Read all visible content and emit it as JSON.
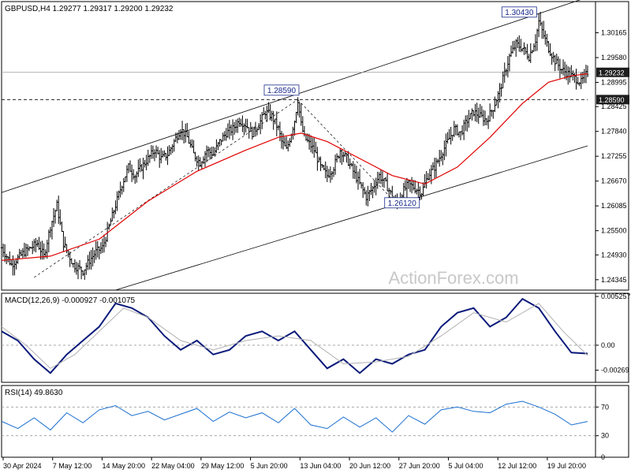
{
  "chart_data": [
    {
      "type": "candlestick",
      "title": "GBPUSD,H4  1.29277 1.29317 1.29200 1.29232",
      "ylim": [
        1.241,
        1.309
      ],
      "y_ticks": [
        "1.30165",
        "1.29580",
        "1.28995",
        "1.28425",
        "1.27840",
        "1.27255",
        "1.26670",
        "1.26085",
        "1.25500",
        "1.24930",
        "1.24345"
      ],
      "y_tick_values": [
        1.30165,
        1.2958,
        1.28995,
        1.28425,
        1.2784,
        1.27255,
        1.2667,
        1.26085,
        1.255,
        1.2493,
        1.24345
      ],
      "x_ticks": [
        "30 Apr 2024",
        "7 May 12:00",
        "14 May 20:00",
        "22 May 04:00",
        "29 May 12:00",
        "5 Jun 20:00",
        "13 Jun 04:00",
        "20 Jun 12:00",
        "27 Jun 20:00",
        "5 Jul 04:00",
        "12 Jul 12:00",
        "19 Jul 20:00"
      ],
      "price_path": [
        [
          0,
          1.251
        ],
        [
          6,
          1.247
        ],
        [
          14,
          1.25
        ],
        [
          22,
          1.252
        ],
        [
          26,
          1.249
        ],
        [
          30,
          1.256
        ],
        [
          34,
          1.261
        ],
        [
          38,
          1.252
        ],
        [
          44,
          1.247
        ],
        [
          50,
          1.2455
        ],
        [
          54,
          1.248
        ],
        [
          58,
          1.25
        ],
        [
          62,
          1.251
        ],
        [
          66,
          1.256
        ],
        [
          70,
          1.261
        ],
        [
          74,
          1.266
        ],
        [
          78,
          1.27
        ],
        [
          82,
          1.268
        ],
        [
          86,
          1.27
        ],
        [
          90,
          1.272
        ],
        [
          94,
          1.274
        ],
        [
          98,
          1.272
        ],
        [
          102,
          1.273
        ],
        [
          106,
          1.276
        ],
        [
          110,
          1.279
        ],
        [
          114,
          1.277
        ],
        [
          118,
          1.273
        ],
        [
          122,
          1.271
        ],
        [
          126,
          1.274
        ],
        [
          130,
          1.273
        ],
        [
          134,
          1.276
        ],
        [
          138,
          1.278
        ],
        [
          142,
          1.279
        ],
        [
          146,
          1.281
        ],
        [
          150,
          1.28
        ],
        [
          154,
          1.278
        ],
        [
          158,
          1.28
        ],
        [
          162,
          1.283
        ],
        [
          166,
          1.282
        ],
        [
          170,
          1.279
        ],
        [
          172,
          1.276
        ],
        [
          175,
          1.274
        ],
        [
          178,
          1.278
        ],
        [
          180,
          1.281
        ],
        [
          182,
          1.2859
        ],
        [
          184,
          1.28
        ],
        [
          186,
          1.277
        ],
        [
          188,
          1.276
        ],
        [
          192,
          1.274
        ],
        [
          196,
          1.27
        ],
        [
          200,
          1.268
        ],
        [
          204,
          1.27
        ],
        [
          208,
          1.274
        ],
        [
          212,
          1.272
        ],
        [
          216,
          1.269
        ],
        [
          220,
          1.266
        ],
        [
          224,
          1.263
        ],
        [
          228,
          1.265
        ],
        [
          232,
          1.268
        ],
        [
          236,
          1.266
        ],
        [
          240,
          1.263
        ],
        [
          243,
          1.2612
        ],
        [
          246,
          1.264
        ],
        [
          250,
          1.266
        ],
        [
          254,
          1.265
        ],
        [
          258,
          1.264
        ],
        [
          262,
          1.268
        ],
        [
          266,
          1.27
        ],
        [
          270,
          1.273
        ],
        [
          274,
          1.276
        ],
        [
          278,
          1.279
        ],
        [
          282,
          1.278
        ],
        [
          286,
          1.281
        ],
        [
          290,
          1.283
        ],
        [
          294,
          1.282
        ],
        [
          298,
          1.281
        ],
        [
          302,
          1.284
        ],
        [
          306,
          1.288
        ],
        [
          309,
          1.292
        ],
        [
          312,
          1.296
        ],
        [
          316,
          1.299
        ],
        [
          320,
          1.298
        ],
        [
          324,
          1.296
        ],
        [
          328,
          1.3
        ],
        [
          330,
          1.3043
        ],
        [
          333,
          1.301
        ],
        [
          336,
          1.298
        ],
        [
          340,
          1.295
        ],
        [
          344,
          1.293
        ],
        [
          348,
          1.292
        ],
        [
          352,
          1.291
        ],
        [
          356,
          1.29
        ],
        [
          360,
          1.2923
        ]
      ],
      "series": [
        {
          "name": "",
          "color": "#e00000",
          "values": [
            [
              0,
              1.248
            ],
            [
              30,
              1.249
            ],
            [
              60,
              1.253
            ],
            [
              90,
              1.262
            ],
            [
              120,
              1.269
            ],
            [
              150,
              1.274
            ],
            [
              170,
              1.277
            ],
            [
              184,
              1.278
            ],
            [
              200,
              1.276
            ],
            [
              220,
              1.272
            ],
            [
              240,
              1.268
            ],
            [
              260,
              1.266
            ],
            [
              280,
              1.27
            ],
            [
              300,
              1.277
            ],
            [
              320,
              1.285
            ],
            [
              336,
              1.29
            ],
            [
              350,
              1.2915
            ],
            [
              360,
              1.292
            ]
          ]
        }
      ],
      "annotations": [
        {
          "label": "1.30430",
          "value": 1.3043
        },
        {
          "label": "1.28590",
          "value": 1.2859
        },
        {
          "label": "1.26120",
          "value": 1.2612
        }
      ],
      "last_price_label": "1.29232",
      "last_price": 1.29232,
      "level_label": "1.28590",
      "level": 1.2859,
      "grid": false,
      "watermark": "ActionForex.com"
    },
    {
      "type": "line",
      "title": "MACD(12,26,9) -0.000927 -0.001075",
      "ylim": [
        -0.004,
        0.0056
      ],
      "y_ticks": [
        "0.005257",
        "0.00",
        "-0.00269"
      ],
      "y_tick_values": [
        0.005257,
        0.0,
        -0.00269
      ],
      "series": [
        {
          "name": "",
          "color": "#0a1a7a",
          "values": [
            [
              0,
              0.0015
            ],
            [
              10,
              0.0005
            ],
            [
              20,
              -0.0015
            ],
            [
              30,
              -0.003
            ],
            [
              40,
              -0.001
            ],
            [
              50,
              0.0005
            ],
            [
              60,
              0.002
            ],
            [
              70,
              0.0045
            ],
            [
              80,
              0.004
            ],
            [
              90,
              0.003
            ],
            [
              100,
              0.001
            ],
            [
              110,
              -0.0005
            ],
            [
              120,
              0.0005
            ],
            [
              130,
              -0.001
            ],
            [
              140,
              -0.0005
            ],
            [
              150,
              0.001
            ],
            [
              160,
              0.0015
            ],
            [
              170,
              0.0005
            ],
            [
              180,
              0.0015
            ],
            [
              190,
              -0.0005
            ],
            [
              200,
              -0.0025
            ],
            [
              210,
              -0.0015
            ],
            [
              220,
              -0.003
            ],
            [
              230,
              -0.0015
            ],
            [
              240,
              -0.002
            ],
            [
              250,
              -0.001
            ],
            [
              260,
              -0.0005
            ],
            [
              270,
              0.002
            ],
            [
              280,
              0.0035
            ],
            [
              290,
              0.004
            ],
            [
              300,
              0.002
            ],
            [
              310,
              0.003
            ],
            [
              320,
              0.005
            ],
            [
              330,
              0.004
            ],
            [
              340,
              0.0015
            ],
            [
              350,
              -0.0008
            ],
            [
              360,
              -0.0009
            ]
          ]
        },
        {
          "name": "",
          "color": "#b0b0b0",
          "values": [
            [
              0,
              0.002
            ],
            [
              15,
              0.0
            ],
            [
              30,
              -0.0025
            ],
            [
              45,
              -0.001
            ],
            [
              60,
              0.0015
            ],
            [
              75,
              0.004
            ],
            [
              90,
              0.003
            ],
            [
              110,
              0.0005
            ],
            [
              130,
              -0.0005
            ],
            [
              150,
              0.0005
            ],
            [
              170,
              0.001
            ],
            [
              190,
              0.0005
            ],
            [
              210,
              -0.002
            ],
            [
              230,
              -0.0018
            ],
            [
              250,
              -0.0012
            ],
            [
              270,
              0.001
            ],
            [
              290,
              0.0035
            ],
            [
              310,
              0.0025
            ],
            [
              330,
              0.0045
            ],
            [
              345,
              0.0015
            ],
            [
              360,
              -0.0011
            ]
          ]
        }
      ],
      "zero_line": 0.0
    },
    {
      "type": "line",
      "title": "RSI(14) 49.8630",
      "ylim": [
        0,
        100
      ],
      "y_ticks": [
        "70",
        "30",
        "0"
      ],
      "y_tick_values": [
        70,
        30,
        0
      ],
      "series": [
        {
          "name": "",
          "color": "#1a6fd0",
          "values": [
            [
              0,
              50
            ],
            [
              10,
              40
            ],
            [
              20,
              55
            ],
            [
              30,
              38
            ],
            [
              40,
              62
            ],
            [
              50,
              48
            ],
            [
              60,
              66
            ],
            [
              70,
              72
            ],
            [
              80,
              58
            ],
            [
              90,
              64
            ],
            [
              100,
              52
            ],
            [
              110,
              60
            ],
            [
              120,
              68
            ],
            [
              130,
              50
            ],
            [
              140,
              63
            ],
            [
              150,
              55
            ],
            [
              160,
              62
            ],
            [
              170,
              48
            ],
            [
              180,
              68
            ],
            [
              190,
              45
            ],
            [
              200,
              40
            ],
            [
              210,
              56
            ],
            [
              220,
              42
            ],
            [
              230,
              55
            ],
            [
              240,
              35
            ],
            [
              250,
              58
            ],
            [
              260,
              46
            ],
            [
              270,
              66
            ],
            [
              280,
              70
            ],
            [
              290,
              64
            ],
            [
              300,
              62
            ],
            [
              310,
              74
            ],
            [
              320,
              78
            ],
            [
              330,
              70
            ],
            [
              340,
              60
            ],
            [
              350,
              45
            ],
            [
              360,
              49.86
            ]
          ]
        }
      ],
      "levels": [
        70,
        30
      ]
    }
  ]
}
